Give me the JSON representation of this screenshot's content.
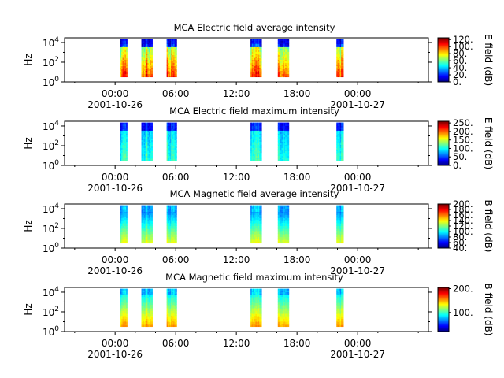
{
  "chart_data": [
    {
      "type": "heatmap",
      "title": "MCA  Electric field average intensity",
      "ylabel": "Hz",
      "yscale": "log",
      "ylim": [
        1,
        30000
      ],
      "yticks": [
        "10^0",
        "10^2",
        "10^4"
      ],
      "xlim_hours": [
        -5,
        31
      ],
      "xticks": [
        "00:00",
        "06:00",
        "12:00",
        "18:00",
        "00:00"
      ],
      "xdates": [
        "2001-10-26",
        "2001-10-27"
      ],
      "colorbar": {
        "label": "E field (dB)",
        "min": 0,
        "max": 125,
        "ticks": [
          "120.",
          "100.",
          "80.",
          "60.",
          "40.",
          "20.",
          "0."
        ]
      },
      "variant": "e_avg",
      "segments_hours": [
        [
          0.5,
          1.2
        ],
        [
          2.6,
          3.7
        ],
        [
          5.1,
          6.1
        ],
        [
          13.4,
          14.5
        ],
        [
          16.1,
          17.2
        ],
        [
          21.9,
          22.6
        ]
      ]
    },
    {
      "type": "heatmap",
      "title": "MCA  Electric field maximum intensity",
      "ylabel": "Hz",
      "yscale": "log",
      "ylim": [
        1,
        30000
      ],
      "yticks": [
        "10^0",
        "10^2",
        "10^4"
      ],
      "xlim_hours": [
        -5,
        31
      ],
      "xticks": [
        "00:00",
        "06:00",
        "12:00",
        "18:00",
        "00:00"
      ],
      "xdates": [
        "2001-10-26",
        "2001-10-27"
      ],
      "colorbar": {
        "label": "E field (dB)",
        "min": 0,
        "max": 260,
        "ticks": [
          "250.",
          "200.",
          "150.",
          "100.",
          "50.",
          "0."
        ]
      },
      "variant": "e_max",
      "segments_hours": [
        [
          0.5,
          1.2
        ],
        [
          2.6,
          3.7
        ],
        [
          5.1,
          6.1
        ],
        [
          13.4,
          14.5
        ],
        [
          16.1,
          17.2
        ],
        [
          21.9,
          22.6
        ]
      ]
    },
    {
      "type": "heatmap",
      "title": "MCA  Magnetic field average intensity",
      "ylabel": "Hz",
      "yscale": "log",
      "ylim": [
        1,
        30000
      ],
      "yticks": [
        "10^0",
        "10^2",
        "10^4"
      ],
      "xlim_hours": [
        -5,
        31
      ],
      "xticks": [
        "00:00",
        "06:00",
        "12:00",
        "18:00",
        "00:00"
      ],
      "xdates": [
        "2001-10-26",
        "2001-10-27"
      ],
      "colorbar": {
        "label": "B field (dB)",
        "min": 40,
        "max": 200,
        "ticks": [
          "200.",
          "180.",
          "160.",
          "140.",
          "120.",
          "100.",
          "80.",
          "60.",
          "40."
        ]
      },
      "variant": "b_avg",
      "segments_hours": [
        [
          0.5,
          1.2
        ],
        [
          2.6,
          3.7
        ],
        [
          5.1,
          6.1
        ],
        [
          13.4,
          14.5
        ],
        [
          16.1,
          17.2
        ],
        [
          21.9,
          22.6
        ]
      ]
    },
    {
      "type": "heatmap",
      "title": "MCA  Magnetic field maximum intensity",
      "ylabel": "Hz",
      "yscale": "log",
      "ylim": [
        1,
        30000
      ],
      "yticks": [
        "10^0",
        "10^2",
        "10^4"
      ],
      "xlim_hours": [
        -5,
        31
      ],
      "xticks": [
        "00:00",
        "06:00",
        "12:00",
        "18:00",
        "00:00"
      ],
      "xdates": [
        "2001-10-26",
        "2001-10-27"
      ],
      "colorbar": {
        "label": "B field (dB)",
        "min": 20,
        "max": 205,
        "ticks": [
          "200.",
          "100."
        ]
      },
      "variant": "b_max",
      "segments_hours": [
        [
          0.5,
          1.2
        ],
        [
          2.6,
          3.7
        ],
        [
          5.1,
          6.1
        ],
        [
          13.4,
          14.5
        ],
        [
          16.1,
          17.2
        ],
        [
          21.9,
          22.6
        ]
      ]
    }
  ]
}
